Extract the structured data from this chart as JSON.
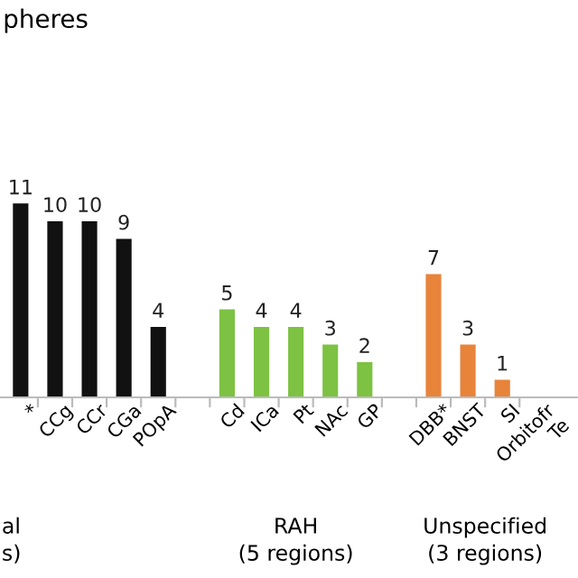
{
  "chart_data": {
    "type": "bar",
    "categories": [
      "*",
      "CCg",
      "CCr",
      "CGa",
      "POpA",
      null,
      "Cd",
      "ICa",
      "Pt",
      "NAc",
      "GP",
      null,
      "DBB*",
      "BNST",
      "SI",
      "Orbitofr\nTe"
    ],
    "values": [
      11,
      10,
      10,
      9,
      4,
      null,
      5,
      4,
      4,
      3,
      2,
      null,
      7,
      3,
      1,
      null
    ],
    "colors": [
      "#111111",
      "#111111",
      "#111111",
      "#111111",
      "#111111",
      "#ffffff",
      "#7dc242",
      "#7dc242",
      "#7dc242",
      "#7dc242",
      "#7dc242",
      "#ffffff",
      "#e8833a",
      "#e8833a",
      "#e8833a",
      "#ffffff"
    ],
    "data_labels": true,
    "grid": false,
    "tick_labels": "x",
    "annotations": [
      "pheres",
      "al\ns)",
      "RAH\n(5 regions)",
      "Unspecified\n(3 regions)"
    ]
  }
}
